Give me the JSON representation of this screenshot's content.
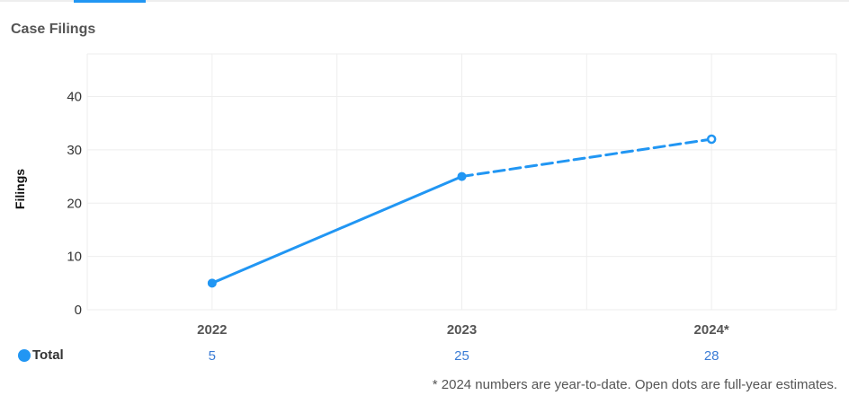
{
  "chart_title": "Case Filings",
  "footnote": "* 2024 numbers are year-to-date. Open dots are full-year estimates.",
  "colors": {
    "series": "#2196f3",
    "grid": "#eeeeee",
    "total_value": "#3a7bd5"
  },
  "chart_data": {
    "type": "line",
    "title": "Case Filings",
    "xlabel": "",
    "ylabel": "Filings",
    "categories": [
      "2022",
      "2023",
      "2024*"
    ],
    "ylim": [
      0,
      40
    ],
    "yticks": [
      0,
      10,
      20,
      30,
      40
    ],
    "grid": true,
    "series": [
      {
        "name": "Total",
        "values": [
          5,
          25,
          32
        ],
        "solid_points": [
          true,
          true,
          false
        ],
        "dashed_from_index": 1
      }
    ],
    "table": {
      "row_label": "Total",
      "values": [
        "5",
        "25",
        "28"
      ]
    }
  }
}
